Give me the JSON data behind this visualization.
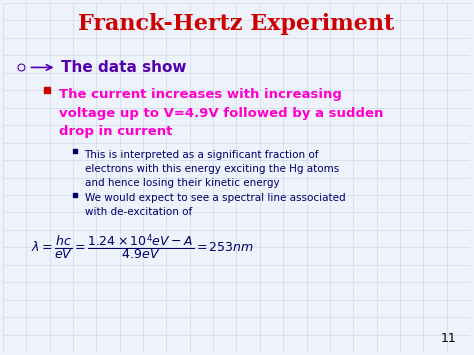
{
  "title": "Franck-Hertz Experiment",
  "title_color": "#CC0000",
  "title_fontsize": 16,
  "bg_color": "#EEF2FA",
  "grid_color": "#C8D4E8",
  "bullet1_text": "► The data show",
  "bullet1_color": "#5500AA",
  "bullet1_fontsize": 11,
  "subbullet1_color": "#FF00CC",
  "subbullet1_fontsize": 9.5,
  "subbullet1_line1": "The current increases with increasing",
  "subbullet1_line2": "voltage up to V=4.9V followed by a sudden",
  "subbullet1_line3": "drop in current",
  "sub2_color": "#000066",
  "sub2_fontsize": 7.5,
  "sub2a_line1": "This is interpreted as a significant fraction of",
  "sub2a_line2": "electrons with this energy exciting the Hg atoms",
  "sub2a_line3": "and hence losing their kinetic energy",
  "sub2b_line1": "We would expect to see a spectral line associated",
  "sub2b_line2": "with de-excitation of",
  "equation_color": "#000066",
  "equation_fontsize": 9,
  "page_num": "11",
  "page_num_color": "#000000",
  "page_num_fontsize": 9,
  "arrow_color": "#5500AA",
  "red_bullet_color": "#CC0000",
  "diamond_color": "#000066"
}
